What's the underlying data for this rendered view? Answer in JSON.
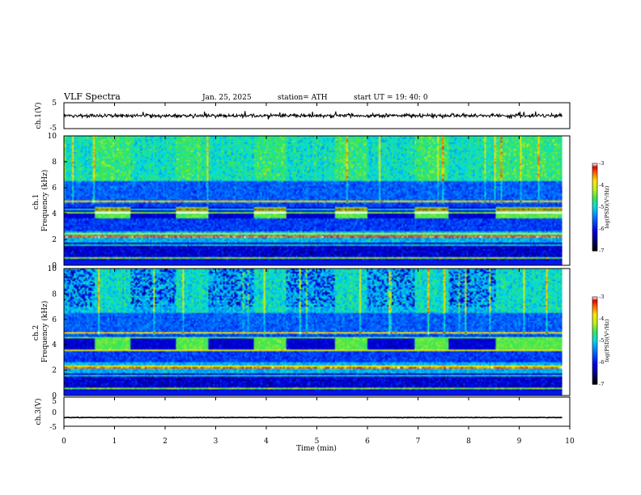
{
  "header": {
    "title": "VLF  Spectra",
    "date": "Jan. 25, 2025",
    "station": "station= ATH",
    "start": "start  UT  =   19: 40: 0"
  },
  "chart_data": [
    {
      "type": "line",
      "name": "ch.1 waveform",
      "ylabel": "ch.1(V)",
      "ylim": [
        -5,
        5
      ],
      "y_ticks": [
        "5",
        "-5"
      ],
      "x_range_min": [
        0,
        9.85
      ],
      "approx_level_v": 0.0
    },
    {
      "type": "heatmap",
      "name": "ch.1 spectrogram",
      "ylabel": "ch.1\nFrequency (kHz)",
      "ylim": [
        0,
        10
      ],
      "y_ticks": [
        "0",
        "2",
        "4",
        "6",
        "8",
        "10"
      ],
      "x_range_min": [
        0,
        9.85
      ],
      "colorbar": {
        "label": "log(PSD)(V²/Hz)",
        "ticks": [
          "-3",
          "-4",
          "-5",
          "-6",
          "-7"
        ],
        "range": [
          -7,
          -3
        ]
      },
      "tone_blocks_min": [
        [
          0.6,
          1.3
        ],
        [
          2.2,
          2.85
        ],
        [
          3.75,
          4.4
        ],
        [
          5.35,
          6.0
        ],
        [
          6.95,
          7.6
        ],
        [
          8.55,
          9.85
        ]
      ],
      "tone_band_khz": [
        3.6,
        4.2
      ],
      "persistent_lines_khz": [
        0.5,
        1.5,
        2.1,
        2.4,
        4.0,
        4.3,
        5.0
      ]
    },
    {
      "type": "heatmap",
      "name": "ch.2 spectrogram",
      "ylabel": "ch.2\nFrequency (kHz)",
      "ylim": [
        0,
        10
      ],
      "y_ticks": [
        "0",
        "2",
        "4",
        "6",
        "8",
        "10"
      ],
      "x_range_min": [
        0,
        9.85
      ],
      "colorbar": {
        "label": "log(PSD)(V²/Hz)",
        "ticks": [
          "-3",
          "-4",
          "-5",
          "-6",
          "-7"
        ],
        "range": [
          -7,
          -3
        ]
      },
      "tone_blocks_min": [
        [
          0.6,
          1.3
        ],
        [
          2.2,
          2.85
        ],
        [
          3.75,
          4.4
        ],
        [
          5.35,
          6.0
        ],
        [
          6.95,
          7.6
        ],
        [
          8.55,
          9.85
        ]
      ],
      "tone_band_khz": [
        3.6,
        4.2
      ],
      "persistent_lines_khz": [
        0.5,
        1.5,
        2.1,
        2.3,
        3.5,
        4.5,
        5.0
      ]
    },
    {
      "type": "line",
      "name": "ch.3 waveform",
      "ylabel": "ch.3(V)",
      "ylim": [
        -5,
        5
      ],
      "y_ticks": [
        "5",
        "0",
        "-5"
      ],
      "x_range_min": [
        0,
        9.85
      ],
      "approx_level_v": -2.0
    }
  ],
  "x_axis": {
    "label": "Time  (min)",
    "ticks": [
      "0",
      "1",
      "2",
      "3",
      "4",
      "5",
      "6",
      "7",
      "8",
      "9",
      "10"
    ],
    "range": [
      0,
      10
    ]
  }
}
